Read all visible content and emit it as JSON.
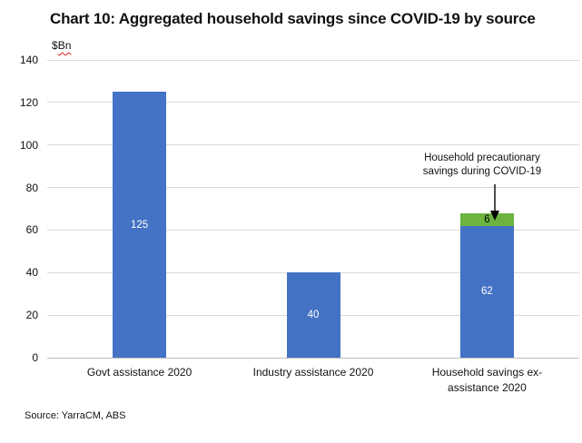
{
  "title": "Chart 10: Aggregated household savings since COVID-19 by source",
  "ylabel_prefix": "$",
  "ylabel_unit": "Bn",
  "source": "Source: YarraCM, ABS",
  "colors": {
    "bar_blue": "#4472C4",
    "bar_green": "#6CB33F",
    "gridline": "#D9D9D9",
    "axis_line": "#BFBFBF",
    "label_on_blue": "#FFFFFF",
    "label_on_green": "#000000",
    "annotation_arrow": "#000000",
    "spellcheck_underline": "#E31B1B"
  },
  "chart_data": {
    "type": "bar",
    "stacked": true,
    "title": "Chart 10: Aggregated household savings since COVID-19 by source",
    "ylabel": "$Bn",
    "xlabel": "",
    "ylim": [
      0,
      140
    ],
    "yticks": [
      0,
      20,
      40,
      60,
      80,
      100,
      120,
      140
    ],
    "grid": true,
    "legend": "none",
    "categories": [
      "Govt assistance 2020",
      "Industry assistance 2020",
      "Household savings ex-assistance 2020"
    ],
    "series": [
      {
        "color_key": "blue",
        "values": [
          125,
          40,
          62
        ]
      },
      {
        "color_key": "green",
        "values": [
          0,
          0,
          6
        ],
        "label": "Household precautionary savings during COVID-19"
      }
    ],
    "data_labels": [
      125,
      40,
      62,
      6
    ],
    "annotation": {
      "text_lines": [
        "Household precautionary",
        "savings during COVID-19"
      ],
      "target": "green segment of third bar"
    }
  }
}
